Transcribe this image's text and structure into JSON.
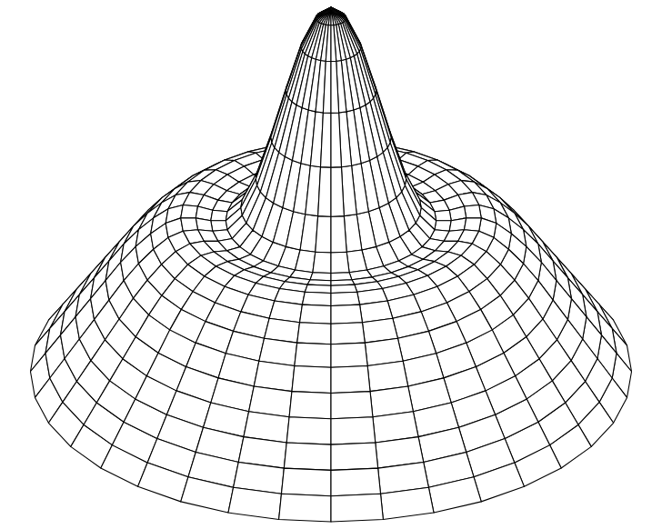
{
  "chart_data": {
    "type": "surface",
    "x": [
      0,
      0.05,
      0.1,
      0.15,
      0.2,
      0.25,
      0.3,
      0.35,
      0.4,
      0.45,
      0.5,
      0.55,
      0.6,
      0.65,
      0.7,
      0.75,
      0.8,
      0.85,
      0.9,
      0.95,
      1.0
    ],
    "values": [
      1.0,
      0.96,
      0.85,
      0.68,
      0.5,
      0.34,
      0.23,
      0.18,
      0.18,
      0.19,
      0.19,
      0.17,
      0.13,
      0.08,
      0.02,
      -0.05,
      -0.12,
      -0.19,
      -0.26,
      -0.33,
      -0.4
    ],
    "theta": [
      0,
      10,
      20,
      30,
      40,
      50,
      60,
      70,
      80,
      90,
      100,
      110,
      120,
      130,
      140,
      150,
      160,
      170,
      180,
      190,
      200,
      210,
      220,
      230,
      240,
      250,
      260,
      270,
      280,
      290,
      300,
      310,
      320,
      330,
      340,
      350
    ],
    "color": "#000000",
    "tick_labels": false
  }
}
